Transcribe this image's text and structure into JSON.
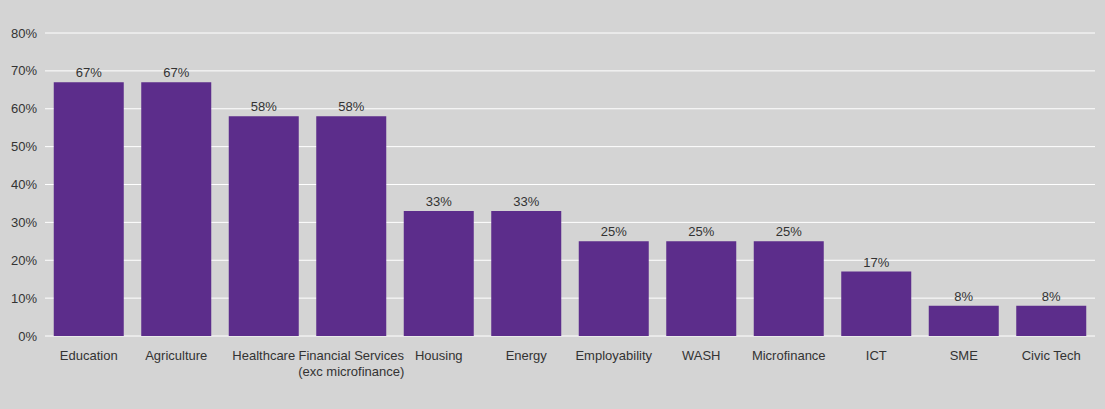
{
  "chart_data": {
    "type": "bar",
    "categories": [
      "Education",
      "Agriculture",
      "Healthcare",
      "Financial Services (exc microfinance)",
      "Housing",
      "Energy",
      "Employability",
      "WASH",
      "Microfinance",
      "ICT",
      "SME",
      "Civic Tech"
    ],
    "values": [
      67,
      67,
      58,
      58,
      33,
      33,
      25,
      25,
      25,
      17,
      8,
      8
    ],
    "value_labels": [
      "67%",
      "67%",
      "58%",
      "58%",
      "33%",
      "33%",
      "25%",
      "25%",
      "25%",
      "17%",
      "8%",
      "8%"
    ],
    "color": "#5c2d8b",
    "ylim": [
      0,
      80
    ],
    "yticks": [
      {
        "value": 0,
        "label": "0%"
      },
      {
        "value": 10,
        "label": "10%"
      },
      {
        "value": 20,
        "label": "20%"
      },
      {
        "value": 30,
        "label": "30%"
      },
      {
        "value": 40,
        "label": "40%"
      },
      {
        "value": 50,
        "label": "50%"
      },
      {
        "value": 60,
        "label": "60%"
      },
      {
        "value": 70,
        "label": "70%"
      },
      {
        "value": 80,
        "label": "80%"
      }
    ],
    "grid": true,
    "data_labels": true
  }
}
